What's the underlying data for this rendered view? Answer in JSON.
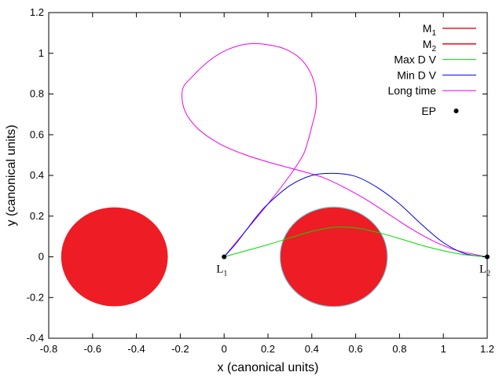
{
  "chart_data": {
    "type": "line",
    "title": "",
    "xlabel": "x (canonical units)",
    "ylabel": "y (canonical units)",
    "xlim": [
      -0.8,
      1.2
    ],
    "ylim": [
      -0.4,
      1.2
    ],
    "xticks": [
      -0.8,
      -0.6,
      -0.4,
      -0.2,
      0,
      0.2,
      0.4,
      0.6,
      0.8,
      1,
      1.2
    ],
    "yticks": [
      -0.4,
      -0.2,
      0,
      0.2,
      0.4,
      0.6,
      0.8,
      1,
      1.2
    ],
    "bodies": [
      {
        "name": "M1",
        "label_main": "M",
        "label_sub": "1",
        "center": [
          -0.5,
          0
        ],
        "radius": 0.245,
        "color": "#ee1c25"
      },
      {
        "name": "M2",
        "label_main": "M",
        "label_sub": "2",
        "center": [
          0.5,
          0
        ],
        "radius": 0.245,
        "color": "#ee1c25",
        "outline": "#7fd3e6"
      }
    ],
    "series": [
      {
        "name": "Max D V",
        "color": "#00dd00",
        "x": [
          0,
          0.1,
          0.2,
          0.3,
          0.4,
          0.5,
          0.6,
          0.7,
          0.8,
          0.9,
          1.0,
          1.1,
          1.2
        ],
        "y": [
          0,
          0.03,
          0.06,
          0.093,
          0.125,
          0.145,
          0.142,
          0.12,
          0.09,
          0.057,
          0.03,
          0.01,
          0
        ]
      },
      {
        "name": "Min D V",
        "color": "#0000ee",
        "x": [
          0,
          0.05,
          0.1,
          0.15,
          0.2,
          0.3,
          0.4,
          0.5,
          0.6,
          0.7,
          0.8,
          0.9,
          1.0,
          1.1,
          1.2
        ],
        "y": [
          0,
          0.06,
          0.13,
          0.2,
          0.26,
          0.35,
          0.4,
          0.41,
          0.395,
          0.34,
          0.26,
          0.16,
          0.07,
          0.015,
          0
        ]
      },
      {
        "name": "Long time",
        "color": "#ee00ee",
        "x": [
          0,
          0.1,
          0.2,
          0.3,
          0.36,
          0.38,
          0.4,
          0.42,
          0.41,
          0.36,
          0.28,
          0.18,
          0.1,
          0.02,
          -0.06,
          -0.15,
          -0.19,
          -0.18,
          -0.12,
          -0.02,
          0.1,
          0.22,
          0.34,
          0.45,
          0.55,
          0.65,
          0.75,
          0.85,
          0.95,
          1.05,
          1.15,
          1.2
        ],
        "y": [
          0,
          0.13,
          0.26,
          0.4,
          0.5,
          0.56,
          0.64,
          0.74,
          0.86,
          0.96,
          1.02,
          1.045,
          1.045,
          1.02,
          0.97,
          0.88,
          0.82,
          0.72,
          0.63,
          0.555,
          0.5,
          0.46,
          0.425,
          0.39,
          0.34,
          0.28,
          0.21,
          0.14,
          0.08,
          0.035,
          0.01,
          0
        ]
      }
    ],
    "points": [
      {
        "name": "L1",
        "label_main": "L",
        "label_sub": "1",
        "x": 0,
        "y": 0
      },
      {
        "name": "L2",
        "label_main": "L",
        "label_sub": "2",
        "x": 1.2,
        "y": 0
      }
    ],
    "legend": {
      "placement": "top-right",
      "entries": [
        {
          "main": "M",
          "sub": "1",
          "color": "#ee1c25",
          "kind": "line"
        },
        {
          "main": "M",
          "sub": "2",
          "color": "#ee1c25",
          "kind": "line"
        },
        {
          "main": "Max D V",
          "sub": "",
          "color": "#00dd00",
          "kind": "line"
        },
        {
          "main": "Min D V",
          "sub": "",
          "color": "#0000ee",
          "kind": "line"
        },
        {
          "main": "Long time",
          "sub": "",
          "color": "#ee00ee",
          "kind": "line"
        },
        {
          "main": "EP",
          "sub": "",
          "color": "#000000",
          "kind": "point"
        }
      ]
    },
    "grid": false
  }
}
